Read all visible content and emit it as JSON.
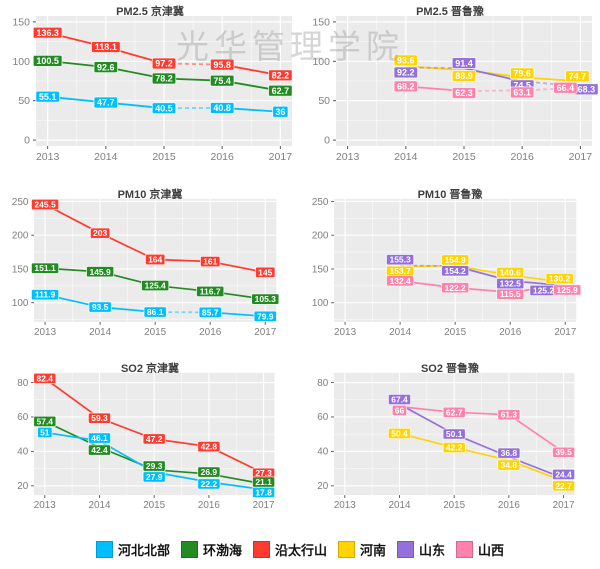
{
  "watermark": "光华管理学院",
  "palette": {
    "blue": "#00BFFF",
    "green": "#228B22",
    "red": "#FF3B30",
    "yellow": "#FFD400",
    "purple": "#9370DB",
    "pink": "#FF82AB"
  },
  "style": {
    "panel_bg": "#EBEBEB",
    "grid_color": "#FFFFFF",
    "tick_label_color": "#7F7F7F",
    "value_label_text": "#FFFFFF"
  },
  "legend": {
    "items": [
      {
        "label": "河北北部",
        "color_key": "blue"
      },
      {
        "label": "环渤海",
        "color_key": "green"
      },
      {
        "label": "沿太行山",
        "color_key": "red"
      },
      {
        "label": "河南",
        "color_key": "yellow"
      },
      {
        "label": "山东",
        "color_key": "purple"
      },
      {
        "label": "山西",
        "color_key": "pink"
      }
    ]
  },
  "axis": {
    "x": [
      2013,
      2014,
      2015,
      2016,
      2017
    ],
    "xlim": [
      2012.8,
      2017.2
    ],
    "xminor": [
      2013.5,
      2014.5,
      2015.5,
      2016.5
    ]
  },
  "chart_data": [
    {
      "type": "line",
      "title": "PM2.5 京津冀",
      "ylim": [
        -7.5,
        157.5
      ],
      "yticks": [
        0,
        50,
        100,
        150
      ],
      "yminor": [
        25,
        75,
        125
      ],
      "series": [
        {
          "name": "沿太行山",
          "color_key": "red",
          "values": [
            136.3,
            118.1,
            97.2,
            95.8,
            82.2
          ],
          "dashed_segments": [
            2
          ],
          "label_offsets": {}
        },
        {
          "name": "环渤海",
          "color_key": "green",
          "values": [
            100.5,
            92.6,
            78.2,
            75.4,
            62.7
          ],
          "dashed_segments": [],
          "label_offsets": {}
        },
        {
          "name": "河北北部",
          "color_key": "blue",
          "values": [
            55.1,
            47.7,
            40.5,
            40.8,
            36
          ],
          "dashed_segments": [
            2
          ],
          "label_offsets": {}
        }
      ]
    },
    {
      "type": "line",
      "title": "PM2.5 晋鲁豫",
      "ylim": [
        -7.5,
        157.5
      ],
      "yticks": [
        0,
        50,
        100,
        150
      ],
      "yminor": [
        25,
        75,
        125
      ],
      "series": [
        {
          "name": "河南",
          "color_key": "yellow",
          "values": [
            null,
            93.6,
            88.9,
            79.6,
            74.7
          ],
          "dashed_segments": [],
          "label_offsets": {
            "1": [
              0,
              -6
            ],
            "2": [
              0,
              6
            ],
            "3": [
              0,
              -4
            ],
            "4": [
              -3,
              -5
            ]
          }
        },
        {
          "name": "山东",
          "color_key": "purple",
          "values": [
            null,
            92.2,
            91.4,
            74.5,
            68.3
          ],
          "dashed_segments": [
            1,
            3
          ],
          "label_offsets": {
            "1": [
              0,
              5
            ],
            "2": [
              0,
              -5
            ],
            "3": [
              0,
              4
            ],
            "4": [
              6,
              3
            ]
          }
        },
        {
          "name": "山西",
          "color_key": "pink",
          "values": [
            null,
            68.2,
            62.3,
            63.1,
            66.4
          ],
          "dashed_segments": [
            2,
            3
          ],
          "label_offsets": {
            "2": [
              0,
              2
            ],
            "3": [
              0,
              2
            ],
            "4": [
              -15,
              0
            ]
          }
        }
      ]
    },
    {
      "type": "line",
      "title": "PM10 京津冀",
      "ylim": [
        71.6,
        253.8
      ],
      "yticks": [
        100,
        150,
        200,
        250
      ],
      "yminor": [
        75,
        125,
        175,
        225
      ],
      "series": [
        {
          "name": "沿太行山",
          "color_key": "red",
          "values": [
            245.5,
            203,
            164,
            161,
            145
          ],
          "dashed_segments": [],
          "label_offsets": {}
        },
        {
          "name": "环渤海",
          "color_key": "green",
          "values": [
            151.1,
            145.9,
            125.4,
            116.7,
            105.3
          ],
          "dashed_segments": [],
          "label_offsets": {}
        },
        {
          "name": "河北北部",
          "color_key": "blue",
          "values": [
            111.9,
            93.5,
            86.1,
            85.7,
            79.9
          ],
          "dashed_segments": [
            2
          ],
          "label_offsets": {}
        }
      ]
    },
    {
      "type": "line",
      "title": "PM10 晋鲁豫",
      "ylim": [
        71.6,
        253.8
      ],
      "yticks": [
        100,
        150,
        200,
        250
      ],
      "yminor": [
        75,
        125,
        175,
        225
      ],
      "series": [
        {
          "name": "河南",
          "color_key": "yellow",
          "values": [
            null,
            153.7,
            154.9,
            140.6,
            130.2
          ],
          "dashed_segments": [],
          "label_offsets": {
            "1": [
              0,
              5
            ],
            "2": [
              0,
              -6
            ],
            "3": [
              0,
              -3
            ],
            "4": [
              -6,
              -4
            ]
          }
        },
        {
          "name": "山东",
          "color_key": "purple",
          "values": [
            null,
            155.3,
            154.2,
            132.5,
            125.2
          ],
          "dashed_segments": [
            1
          ],
          "label_offsets": {
            "1": [
              0,
              -6
            ],
            "2": [
              0,
              5
            ],
            "3": [
              0,
              3
            ],
            "4": [
              -23,
              5
            ]
          }
        },
        {
          "name": "山西",
          "color_key": "pink",
          "values": [
            null,
            132.4,
            122.2,
            115.5,
            125.9
          ],
          "dashed_segments": [],
          "label_offsets": {
            "3": [
              0,
              2
            ],
            "4": [
              2,
              5
            ]
          }
        }
      ]
    },
    {
      "type": "line",
      "title": "SO2 京津冀",
      "ylim": [
        14.6,
        85.6
      ],
      "yticks": [
        20,
        40,
        60,
        80
      ],
      "yminor": [
        30,
        50,
        70
      ],
      "series": [
        {
          "name": "沿太行山",
          "color_key": "red",
          "values": [
            82.4,
            59.3,
            47.2,
            42.8,
            27.3
          ],
          "dashed_segments": [],
          "label_offsets": {}
        },
        {
          "name": "环渤海",
          "color_key": "green",
          "values": [
            57.4,
            42.4,
            29.3,
            26.9,
            21.1
          ],
          "dashed_segments": [],
          "label_offsets": {
            "1": [
              0,
              3
            ],
            "2": [
              0,
              -4
            ],
            "3": [
              0,
              -2
            ],
            "4": [
              0,
              -2
            ]
          }
        },
        {
          "name": "河北北部",
          "color_key": "blue",
          "values": [
            51,
            46.1,
            27.9,
            22.2,
            17.8
          ],
          "dashed_segments": [],
          "label_offsets": {
            "1": [
              0,
              -3
            ],
            "2": [
              0,
              5
            ],
            "3": [
              0,
              2
            ],
            "4": [
              0,
              3
            ]
          }
        }
      ]
    },
    {
      "type": "line",
      "title": "SO2 晋鲁豫",
      "ylim": [
        14.6,
        85.6
      ],
      "yticks": [
        20,
        40,
        60,
        80
      ],
      "yminor": [
        30,
        50,
        70
      ],
      "series": [
        {
          "name": "山西",
          "color_key": "pink",
          "values": [
            null,
            66,
            62.7,
            61.3,
            39.5
          ],
          "dashed_segments": [],
          "label_offsets": {
            "1": [
              0,
              4
            ]
          }
        },
        {
          "name": "山东",
          "color_key": "purple",
          "values": [
            null,
            67.4,
            50.1,
            36.8,
            24.4
          ],
          "dashed_segments": [],
          "label_offsets": {
            "1": [
              0,
              -5
            ],
            "3": [
              0,
              -4
            ],
            "4": [
              0,
              -4
            ]
          }
        },
        {
          "name": "河南",
          "color_key": "yellow",
          "values": [
            null,
            50.4,
            42.2,
            34.8,
            22.7
          ],
          "dashed_segments": [],
          "label_offsets": {
            "3": [
              0,
              5
            ],
            "4": [
              0,
              5
            ]
          }
        }
      ]
    }
  ]
}
